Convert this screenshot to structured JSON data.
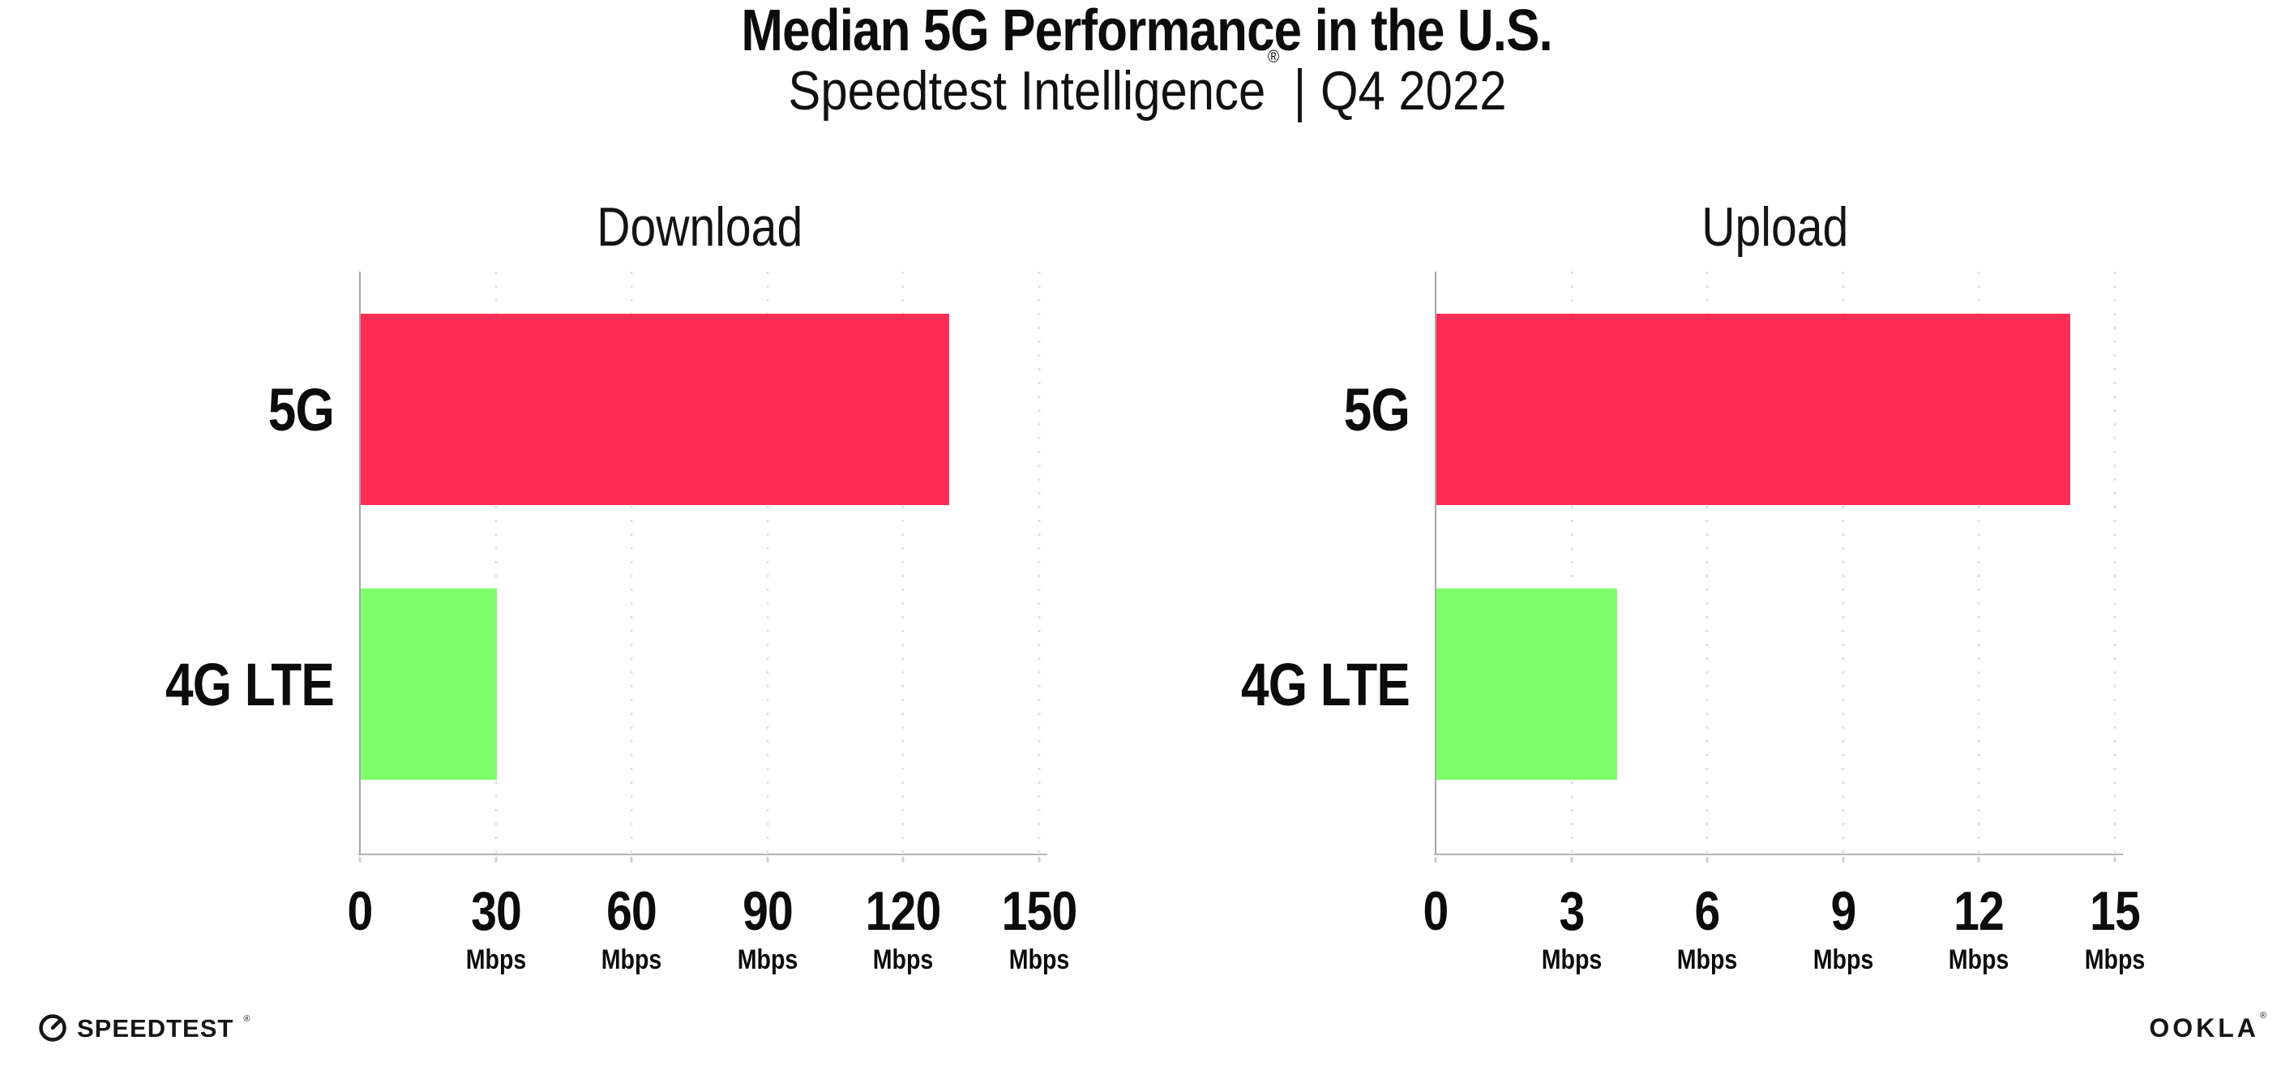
{
  "header": {
    "title": "Median 5G Performance in the U.S.",
    "subtitle_product": "Speedtest Intelligence",
    "subtitle_registered": "®",
    "subtitle_separator": "|",
    "subtitle_period": "Q4 2022"
  },
  "chart_data": [
    {
      "type": "bar",
      "orientation": "horizontal",
      "title": "Download",
      "categories": [
        "5G",
        "4G LTE"
      ],
      "values": [
        130,
        30
      ],
      "unit": "Mbps",
      "xlim": [
        0,
        150
      ],
      "xticks": [
        0,
        30,
        60,
        90,
        120,
        150
      ],
      "tick_unit": "Mbps",
      "bar_colors": [
        "#ff2d55",
        "#7dff69"
      ],
      "grid": "dotted vertical gridlines at each tick",
      "legend": "none"
    },
    {
      "type": "bar",
      "orientation": "horizontal",
      "title": "Upload",
      "categories": [
        "5G",
        "4G LTE"
      ],
      "values": [
        14,
        4
      ],
      "unit": "Mbps",
      "xlim": [
        0,
        15
      ],
      "xticks": [
        0,
        3,
        6,
        9,
        12,
        15
      ],
      "tick_unit": "Mbps",
      "bar_colors": [
        "#ff2d55",
        "#7dff69"
      ],
      "grid": "dotted vertical gridlines at each tick",
      "legend": "none"
    }
  ],
  "footer": {
    "speedtest_wordmark": "SPEEDTEST",
    "speedtest_mark": "®",
    "ookla_wordmark": "OOKLA",
    "ookla_mark": "®"
  },
  "colors": {
    "bar_5g": "#ff2d55",
    "bar_4g_lte": "#7dff69",
    "axis_line": "#a9a9af",
    "grid_dots": "#e0e1e7",
    "text": "#0c0c0c",
    "background": "#ffffff"
  }
}
